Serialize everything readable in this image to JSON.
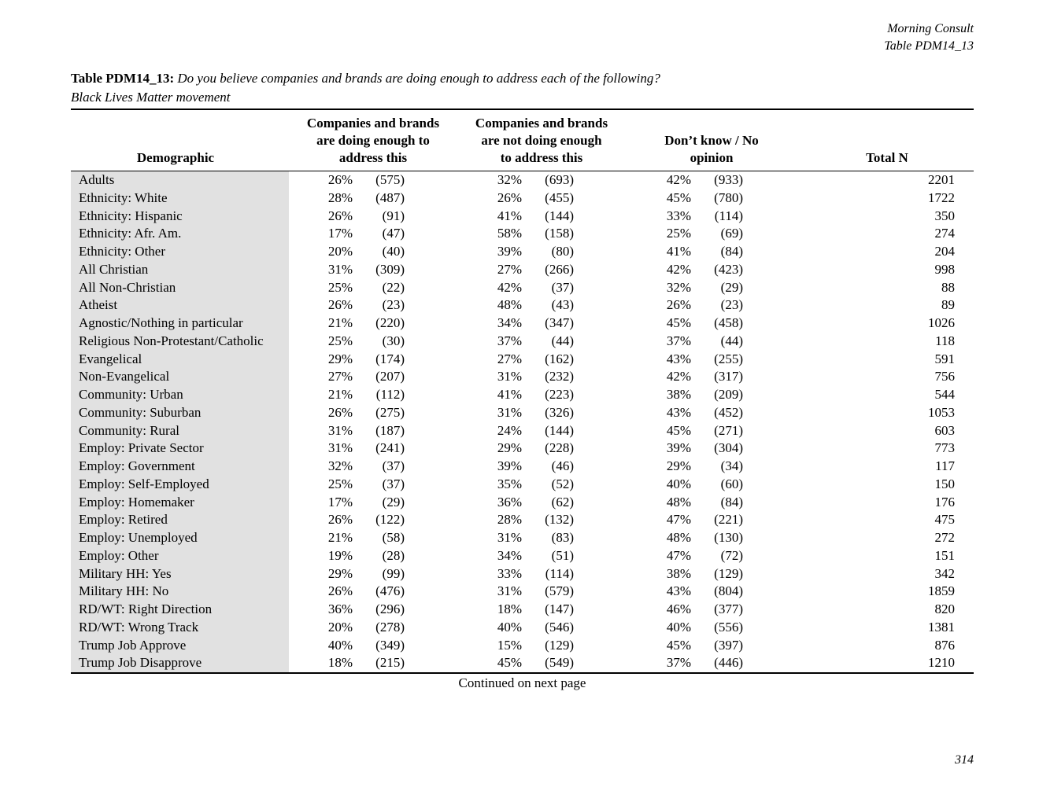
{
  "page": {
    "header_right_line1": "Morning Consult",
    "header_right_line2": "Table PDM14_13",
    "page_number": "314"
  },
  "title": {
    "label": "Table PDM14_13:",
    "question": "Do you believe companies and brands are doing enough to address each of the following?",
    "subject": "Black Lives Matter movement"
  },
  "table": {
    "col_headers": {
      "demographic": "Demographic",
      "col1_line1": "Companies and brands",
      "col1_line2": "are doing enough to",
      "col1_line3": "address this",
      "col2_line1": "Companies and brands",
      "col2_line2": "are not doing enough",
      "col2_line3": "to address this",
      "col3_line1": "Don’t know / No",
      "col3_line2": "opinion",
      "total": "Total N"
    },
    "rows": [
      {
        "label": "Adults",
        "pct1": "26%",
        "n1": "(575)",
        "pct2": "32%",
        "n2": "(693)",
        "pct3": "42%",
        "n3": "(933)",
        "total": "2201"
      },
      {
        "label": "Ethnicity: White",
        "pct1": "28%",
        "n1": "(487)",
        "pct2": "26%",
        "n2": "(455)",
        "pct3": "45%",
        "n3": "(780)",
        "total": "1722"
      },
      {
        "label": "Ethnicity: Hispanic",
        "pct1": "26%",
        "n1": "(91)",
        "pct2": "41%",
        "n2": "(144)",
        "pct3": "33%",
        "n3": "(114)",
        "total": "350"
      },
      {
        "label": "Ethnicity: Afr. Am.",
        "pct1": "17%",
        "n1": "(47)",
        "pct2": "58%",
        "n2": "(158)",
        "pct3": "25%",
        "n3": "(69)",
        "total": "274"
      },
      {
        "label": "Ethnicity: Other",
        "pct1": "20%",
        "n1": "(40)",
        "pct2": "39%",
        "n2": "(80)",
        "pct3": "41%",
        "n3": "(84)",
        "total": "204"
      },
      {
        "label": "All Christian",
        "pct1": "31%",
        "n1": "(309)",
        "pct2": "27%",
        "n2": "(266)",
        "pct3": "42%",
        "n3": "(423)",
        "total": "998"
      },
      {
        "label": "All Non-Christian",
        "pct1": "25%",
        "n1": "(22)",
        "pct2": "42%",
        "n2": "(37)",
        "pct3": "32%",
        "n3": "(29)",
        "total": "88"
      },
      {
        "label": "Atheist",
        "pct1": "26%",
        "n1": "(23)",
        "pct2": "48%",
        "n2": "(43)",
        "pct3": "26%",
        "n3": "(23)",
        "total": "89"
      },
      {
        "label": "Agnostic/Nothing in particular",
        "pct1": "21%",
        "n1": "(220)",
        "pct2": "34%",
        "n2": "(347)",
        "pct3": "45%",
        "n3": "(458)",
        "total": "1026"
      },
      {
        "label": "Religious Non-Protestant/Catholic",
        "pct1": "25%",
        "n1": "(30)",
        "pct2": "37%",
        "n2": "(44)",
        "pct3": "37%",
        "n3": "(44)",
        "total": "118"
      },
      {
        "label": "Evangelical",
        "pct1": "29%",
        "n1": "(174)",
        "pct2": "27%",
        "n2": "(162)",
        "pct3": "43%",
        "n3": "(255)",
        "total": "591"
      },
      {
        "label": "Non-Evangelical",
        "pct1": "27%",
        "n1": "(207)",
        "pct2": "31%",
        "n2": "(232)",
        "pct3": "42%",
        "n3": "(317)",
        "total": "756"
      },
      {
        "label": "Community: Urban",
        "pct1": "21%",
        "n1": "(112)",
        "pct2": "41%",
        "n2": "(223)",
        "pct3": "38%",
        "n3": "(209)",
        "total": "544"
      },
      {
        "label": "Community: Suburban",
        "pct1": "26%",
        "n1": "(275)",
        "pct2": "31%",
        "n2": "(326)",
        "pct3": "43%",
        "n3": "(452)",
        "total": "1053"
      },
      {
        "label": "Community: Rural",
        "pct1": "31%",
        "n1": "(187)",
        "pct2": "24%",
        "n2": "(144)",
        "pct3": "45%",
        "n3": "(271)",
        "total": "603"
      },
      {
        "label": "Employ: Private Sector",
        "pct1": "31%",
        "n1": "(241)",
        "pct2": "29%",
        "n2": "(228)",
        "pct3": "39%",
        "n3": "(304)",
        "total": "773"
      },
      {
        "label": "Employ: Government",
        "pct1": "32%",
        "n1": "(37)",
        "pct2": "39%",
        "n2": "(46)",
        "pct3": "29%",
        "n3": "(34)",
        "total": "117"
      },
      {
        "label": "Employ: Self-Employed",
        "pct1": "25%",
        "n1": "(37)",
        "pct2": "35%",
        "n2": "(52)",
        "pct3": "40%",
        "n3": "(60)",
        "total": "150"
      },
      {
        "label": "Employ: Homemaker",
        "pct1": "17%",
        "n1": "(29)",
        "pct2": "36%",
        "n2": "(62)",
        "pct3": "48%",
        "n3": "(84)",
        "total": "176"
      },
      {
        "label": "Employ: Retired",
        "pct1": "26%",
        "n1": "(122)",
        "pct2": "28%",
        "n2": "(132)",
        "pct3": "47%",
        "n3": "(221)",
        "total": "475"
      },
      {
        "label": "Employ: Unemployed",
        "pct1": "21%",
        "n1": "(58)",
        "pct2": "31%",
        "n2": "(83)",
        "pct3": "48%",
        "n3": "(130)",
        "total": "272"
      },
      {
        "label": "Employ: Other",
        "pct1": "19%",
        "n1": "(28)",
        "pct2": "34%",
        "n2": "(51)",
        "pct3": "47%",
        "n3": "(72)",
        "total": "151"
      },
      {
        "label": "Military HH: Yes",
        "pct1": "29%",
        "n1": "(99)",
        "pct2": "33%",
        "n2": "(114)",
        "pct3": "38%",
        "n3": "(129)",
        "total": "342"
      },
      {
        "label": "Military HH: No",
        "pct1": "26%",
        "n1": "(476)",
        "pct2": "31%",
        "n2": "(579)",
        "pct3": "43%",
        "n3": "(804)",
        "total": "1859"
      },
      {
        "label": "RD/WT: Right Direction",
        "pct1": "36%",
        "n1": "(296)",
        "pct2": "18%",
        "n2": "(147)",
        "pct3": "46%",
        "n3": "(377)",
        "total": "820"
      },
      {
        "label": "RD/WT: Wrong Track",
        "pct1": "20%",
        "n1": "(278)",
        "pct2": "40%",
        "n2": "(546)",
        "pct3": "40%",
        "n3": "(556)",
        "total": "1381"
      },
      {
        "label": "Trump Job Approve",
        "pct1": "40%",
        "n1": "(349)",
        "pct2": "15%",
        "n2": "(129)",
        "pct3": "45%",
        "n3": "(397)",
        "total": "876"
      },
      {
        "label": "Trump Job Disapprove",
        "pct1": "18%",
        "n1": "(215)",
        "pct2": "45%",
        "n2": "(549)",
        "pct3": "37%",
        "n3": "(446)",
        "total": "1210"
      }
    ],
    "footer": "Continued on next page"
  },
  "colors": {
    "row_shade": "#e1e1e1",
    "text": "#000000"
  }
}
